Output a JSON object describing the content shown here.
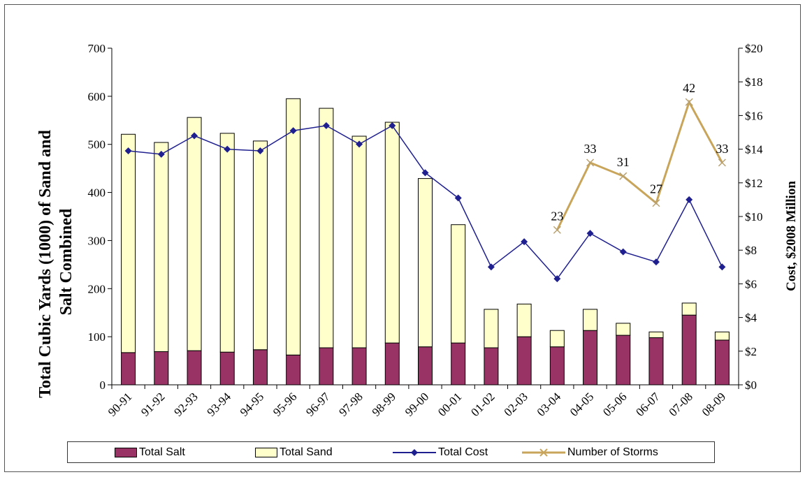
{
  "chart_data": {
    "type": "bar",
    "categories": [
      "90-91",
      "91-92",
      "92-93",
      "93-94",
      "94-95",
      "95-96",
      "96-97",
      "97-98",
      "98-99",
      "99-00",
      "00-01",
      "01-02",
      "02-03",
      "03-04",
      "04-05",
      "05-06",
      "06-07",
      "07-08",
      "08-09"
    ],
    "series": [
      {
        "name": "Total Salt",
        "type": "bar",
        "axis": "left",
        "color": "#993366",
        "values": [
          67,
          69,
          71,
          68,
          73,
          62,
          77,
          77,
          87,
          79,
          87,
          77,
          100,
          79,
          113,
          103,
          98,
          145,
          93
        ]
      },
      {
        "name": "Total Sand",
        "type": "bar",
        "axis": "left",
        "color": "#ffffcc",
        "values": [
          454,
          435,
          485,
          455,
          434,
          533,
          498,
          440,
          459,
          350,
          246,
          80,
          68,
          34,
          44,
          25,
          12,
          25,
          17
        ]
      },
      {
        "name": "Total Cost",
        "type": "line",
        "axis": "right",
        "color": "#1f1f8f",
        "values": [
          13.9,
          13.7,
          14.8,
          14.0,
          13.9,
          15.1,
          15.4,
          14.3,
          15.4,
          12.6,
          11.1,
          7.0,
          8.5,
          6.3,
          9.0,
          7.9,
          7.3,
          11.0,
          7.0
        ]
      },
      {
        "name": "Number of Storms",
        "type": "line",
        "axis": "right",
        "color": "#c8a55a",
        "values": [
          null,
          null,
          null,
          null,
          null,
          null,
          null,
          null,
          null,
          null,
          null,
          null,
          null,
          23,
          33,
          31,
          27,
          42,
          33
        ],
        "plot_values": [
          null,
          null,
          null,
          null,
          null,
          null,
          null,
          null,
          null,
          null,
          null,
          null,
          null,
          9.2,
          13.2,
          12.4,
          10.8,
          16.8,
          13.2
        ],
        "data_labels": [
          null,
          null,
          null,
          null,
          null,
          null,
          null,
          null,
          null,
          null,
          null,
          null,
          null,
          "23",
          "33",
          "31",
          "27",
          "42",
          "33"
        ]
      }
    ],
    "ylabel": "Total Cubic Yards (1000) of Sand  and Salt Combined",
    "ylabel_lines": [
      "Total Cubic Yards (1000) of Sand  and",
      "Salt Combined"
    ],
    "y2label": "Cost,  $2008 Million",
    "ylim": [
      0,
      700
    ],
    "y2lim": [
      0,
      20
    ],
    "yticks": [
      "0",
      "100",
      "200",
      "300",
      "400",
      "500",
      "600",
      "700"
    ],
    "y2ticks": [
      "$0",
      "$2",
      "$4",
      "$6",
      "$8",
      "$10",
      "$12",
      "$14",
      "$16",
      "$18",
      "$20"
    ],
    "stacked": true,
    "grid": false,
    "legend_position": "bottom"
  },
  "legend": {
    "items": [
      {
        "label": "Total Salt",
        "swatch": "bar",
        "color": "#993366"
      },
      {
        "label": "Total Sand",
        "swatch": "bar",
        "color": "#ffffcc"
      },
      {
        "label": "Total Cost",
        "swatch": "line-diamond",
        "color": "#1f1f8f"
      },
      {
        "label": "Number of Storms",
        "swatch": "line-x",
        "color": "#c8a55a"
      }
    ]
  }
}
